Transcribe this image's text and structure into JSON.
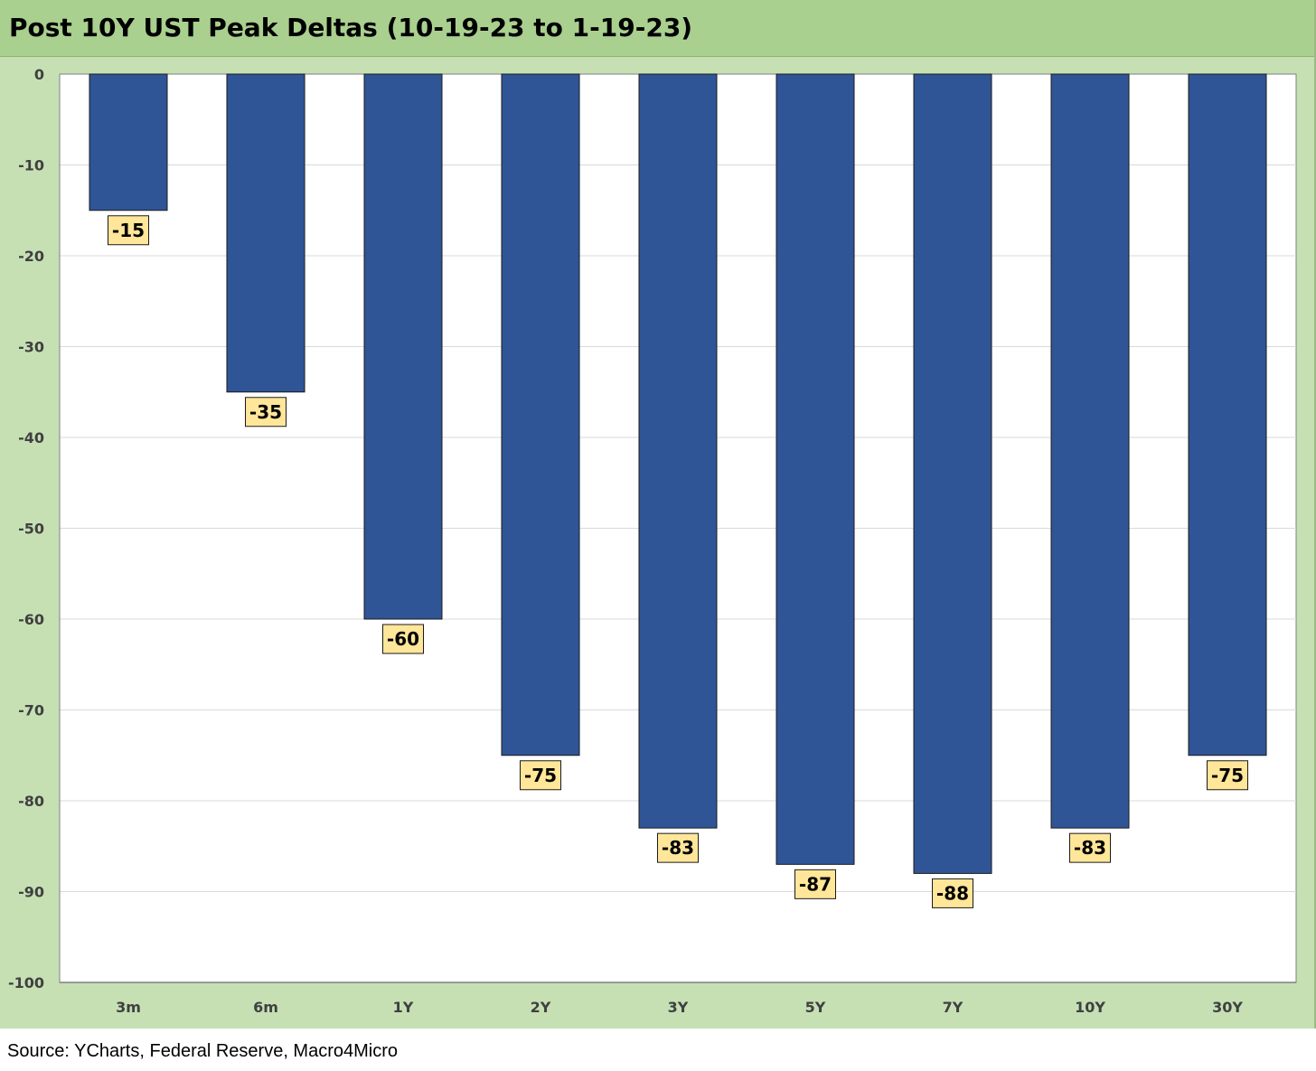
{
  "title": "Post 10Y UST Peak Deltas (10-19-23 to 1-19-23)",
  "source": "Source: YCharts, Federal Reserve, Macro4Micro",
  "chart_data": {
    "type": "bar",
    "title": "Post 10Y UST Peak Deltas (10-19-23 to 1-19-23)",
    "categories": [
      "3m",
      "6m",
      "1Y",
      "2Y",
      "3Y",
      "5Y",
      "7Y",
      "10Y",
      "30Y"
    ],
    "values": [
      -15,
      -35,
      -60,
      -75,
      -83,
      -87,
      -88,
      -83,
      -75
    ],
    "ylim": [
      -100,
      0
    ],
    "yticks": [
      0,
      -10,
      -20,
      -30,
      -40,
      -50,
      -60,
      -70,
      -80,
      -90,
      -100
    ],
    "grid": true,
    "legend": "none",
    "colors": {
      "bar": "#2f5597",
      "label_bg": "#ffe699",
      "plot_bg": "#ffffff",
      "frame_bg": "#c6e0b4",
      "title_bg": "#a9d08e"
    }
  }
}
